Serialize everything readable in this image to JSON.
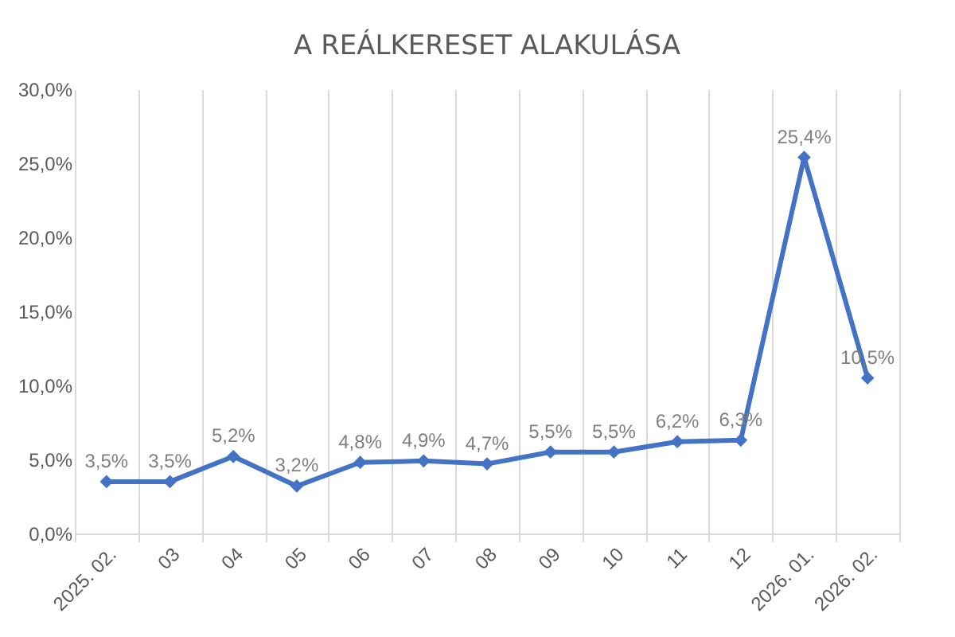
{
  "chart_data": {
    "type": "line",
    "title": "A REÁLKERESET ALAKULÁSA",
    "categories": [
      "2025. 02.",
      "03",
      "04",
      "05",
      "06",
      "07",
      "08",
      "09",
      "10",
      "11",
      "12",
      "2026. 01.",
      "2026. 02."
    ],
    "series": [
      {
        "color": "#4472c4",
        "values": [
          3.5,
          3.5,
          5.2,
          3.2,
          4.8,
          4.9,
          4.7,
          5.5,
          5.5,
          6.2,
          6.3,
          25.4,
          10.5
        ],
        "value_labels": [
          "3,5%",
          "3,5%",
          "5,2%",
          "3,2%",
          "4,8%",
          "4,9%",
          "4,7%",
          "5,5%",
          "5,5%",
          "6,2%",
          "6,3%",
          "25,4%",
          "10,5%"
        ]
      }
    ],
    "ylim": [
      0,
      30
    ],
    "yticks": [
      {
        "value": 0,
        "label": "0,0%"
      },
      {
        "value": 5,
        "label": "5,0%"
      },
      {
        "value": 10,
        "label": "10,0%"
      },
      {
        "value": 15,
        "label": "15,0%"
      },
      {
        "value": 20,
        "label": "20,0%"
      },
      {
        "value": 25,
        "label": "25,0%"
      },
      {
        "value": 30,
        "label": "30,0%"
      }
    ],
    "grid": "x",
    "marker": "diamond",
    "line_style": "solid"
  }
}
